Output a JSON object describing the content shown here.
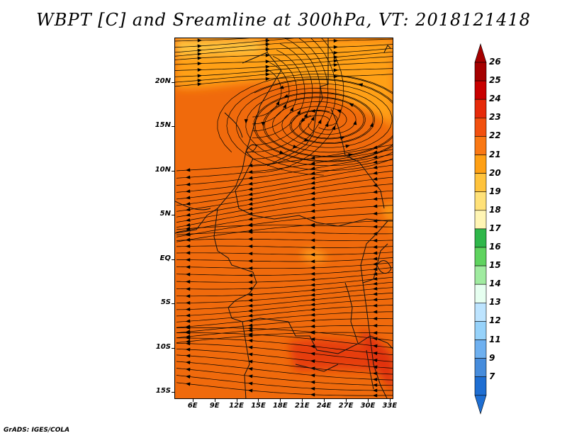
{
  "title": "WBPT [C] and Sreamline at 300hPa, VT: 2018121418",
  "footer": "GrADS: IGES/COLA",
  "map": {
    "lat_labels": [
      "20N",
      "15N",
      "10N",
      "5N",
      "EQ",
      "5S",
      "10S",
      "15S"
    ],
    "lon_labels": [
      "6E",
      "9E",
      "12E",
      "15E",
      "18E",
      "21E",
      "24E",
      "27E",
      "30E",
      "33E"
    ],
    "lat_values": [
      20,
      15,
      10,
      5,
      0,
      -5,
      -10,
      -15
    ],
    "lon_values": [
      6,
      9,
      12,
      15,
      18,
      21,
      24,
      27,
      30,
      33
    ],
    "lon_range": [
      3.5,
      33.5
    ],
    "lat_range": [
      -15.8,
      25
    ],
    "vortex_center": {
      "lon": 23.8,
      "lat": 15.5
    },
    "dominant_flow": "easterly",
    "shading_dominant": "22-23",
    "shading_north": "21-22",
    "shading_south_maximum": "23-24"
  },
  "colorbar": {
    "labels": [
      "26",
      "25",
      "24",
      "23",
      "22",
      "21",
      "20",
      "19",
      "18",
      "17",
      "16",
      "15",
      "14",
      "13",
      "12",
      "11",
      "9",
      "7"
    ],
    "colors": [
      "#a50000",
      "#c80000",
      "#e62a0a",
      "#f2500f",
      "#fa7814",
      "#ffa014",
      "#ffc33c",
      "#ffe178",
      "#fff5b4",
      "#2fb74a",
      "#5fd35f",
      "#a0eba0",
      "#e6fff0",
      "#bde4ff",
      "#96d2fa",
      "#6eb0f0",
      "#468cdc",
      "#1e6ed2"
    ],
    "top_arrow_color": "#a50000",
    "bottom_arrow_color": "#1e6ed2"
  }
}
